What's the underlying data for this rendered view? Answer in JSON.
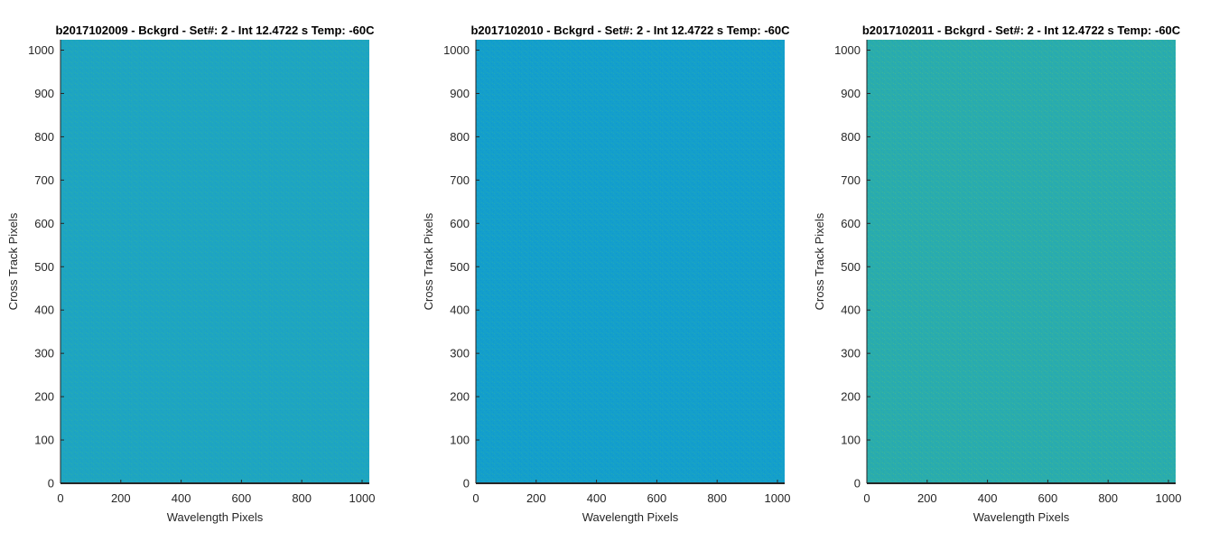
{
  "chart_data": [
    {
      "type": "heatmap",
      "title": "b2017102009 - Bckgrd - Set#: 2 - Int 12.4722 s Temp: -60C",
      "xlabel": "Wavelength Pixels",
      "ylabel": "Cross Track Pixels",
      "xlim": [
        0,
        1024
      ],
      "ylim": [
        0,
        1024
      ],
      "xticks": [
        0,
        200,
        400,
        600,
        800,
        1000
      ],
      "yticks": [
        0,
        100,
        200,
        300,
        400,
        500,
        600,
        700,
        800,
        900,
        1000
      ],
      "colormap": "parula",
      "dominant_color": "#1ea5c1",
      "texture_colors": [
        "#1b9fc8",
        "#21a7b9",
        "#2aadad"
      ]
    },
    {
      "type": "heatmap",
      "title": "b2017102010 - Bckgrd - Set#: 2 - Int 12.4722 s Temp: -60C",
      "xlabel": "Wavelength Pixels",
      "ylabel": "Cross Track Pixels",
      "xlim": [
        0,
        1024
      ],
      "ylim": [
        0,
        1024
      ],
      "xticks": [
        0,
        200,
        400,
        600,
        800,
        1000
      ],
      "yticks": [
        0,
        100,
        200,
        300,
        400,
        500,
        600,
        700,
        800,
        900,
        1000
      ],
      "colormap": "parula",
      "dominant_color": "#149fcb",
      "texture_colors": [
        "#0f98d0",
        "#18a3c4",
        "#21a8b8"
      ]
    },
    {
      "type": "heatmap",
      "title": "b2017102011 - Bckgrd - Set#: 2 - Int 12.4722 s Temp: -60C",
      "xlabel": "Wavelength Pixels",
      "ylabel": "Cross Track Pixels",
      "xlim": [
        0,
        1024
      ],
      "ylim": [
        0,
        1024
      ],
      "xticks": [
        0,
        200,
        400,
        600,
        800,
        1000
      ],
      "yticks": [
        0,
        100,
        200,
        300,
        400,
        500,
        600,
        700,
        800,
        900,
        1000
      ],
      "colormap": "parula",
      "dominant_color": "#2aacad",
      "texture_colors": [
        "#22a7b8",
        "#30b0a3",
        "#3cb598"
      ]
    }
  ]
}
